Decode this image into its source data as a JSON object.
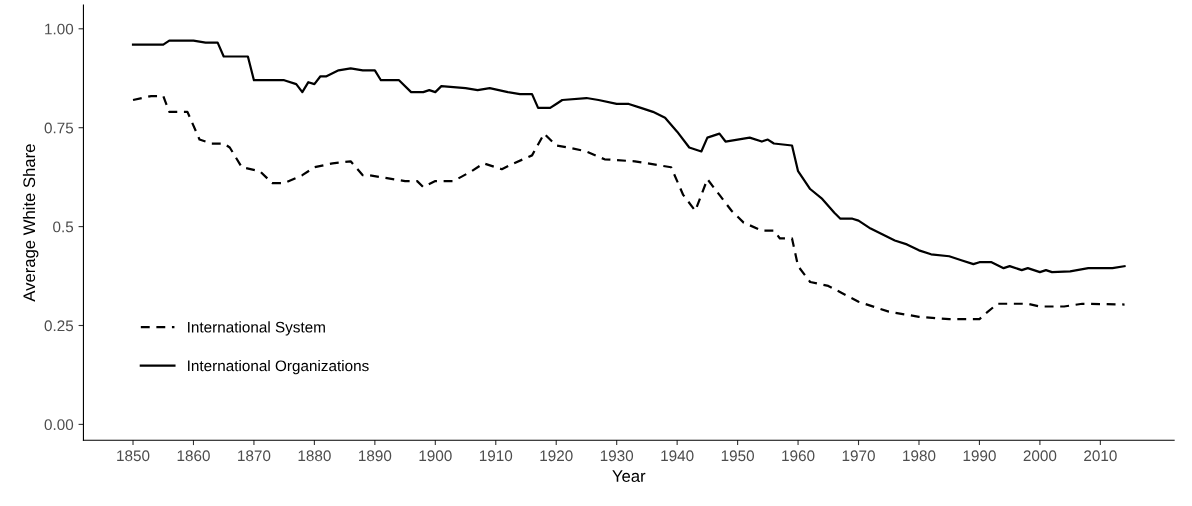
{
  "chart_data": {
    "type": "line",
    "xlabel": "Year",
    "ylabel": "Average White Share",
    "xlim": [
      1841.8,
      2022.2
    ],
    "xticks": [
      1850,
      1860,
      1870,
      1880,
      1890,
      1900,
      1910,
      1920,
      1930,
      1940,
      1950,
      1960,
      1970,
      1980,
      1990,
      2000,
      2010
    ],
    "ylim": [
      -0.04,
      1.06
    ],
    "yticks": [
      {
        "value": 0,
        "label": "0.00"
      },
      {
        "value": 0.25,
        "label": "0.25"
      },
      {
        "value": 0.5,
        "label": "0.5"
      },
      {
        "value": 0.75,
        "label": "0.75"
      },
      {
        "value": 1,
        "label": "1.00"
      }
    ],
    "grid": false,
    "legend": "bottom left",
    "series": [
      {
        "name": "International System",
        "color": "#000000",
        "line_style": "dashed",
        "x": [
          1850,
          1853,
          1855,
          1856,
          1859,
          1861,
          1863,
          1865,
          1866,
          1868,
          1871,
          1873,
          1875,
          1878,
          1880,
          1883,
          1886,
          1888,
          1889,
          1895,
          1897,
          1898,
          1900,
          1903,
          1906,
          1908,
          1911,
          1913,
          1916,
          1918,
          1920,
          1922,
          1925,
          1928,
          1933,
          1937,
          1939,
          1941,
          1943,
          1945,
          1947,
          1949,
          1951,
          1954,
          1956,
          1957,
          1959,
          1960,
          1962,
          1965,
          1970,
          1975,
          1980,
          1985,
          1990,
          1991,
          1993,
          1998,
          2000,
          2004,
          2007,
          2014
        ],
        "values": [
          0.82,
          0.83,
          0.83,
          0.79,
          0.79,
          0.72,
          0.71,
          0.71,
          0.7,
          0.65,
          0.64,
          0.61,
          0.61,
          0.63,
          0.65,
          0.66,
          0.665,
          0.63,
          0.63,
          0.615,
          0.615,
          0.6,
          0.615,
          0.615,
          0.64,
          0.66,
          0.645,
          0.66,
          0.68,
          0.735,
          0.705,
          0.7,
          0.69,
          0.67,
          0.665,
          0.655,
          0.65,
          0.58,
          0.54,
          0.62,
          0.58,
          0.54,
          0.51,
          0.49,
          0.49,
          0.47,
          0.47,
          0.4,
          0.36,
          0.35,
          0.31,
          0.285,
          0.272,
          0.266,
          0.266,
          0.28,
          0.305,
          0.305,
          0.298,
          0.298,
          0.305,
          0.303
        ]
      },
      {
        "name": "International Organizations",
        "color": "#000000",
        "line_style": "solid",
        "x": [
          1850,
          1855,
          1856,
          1860,
          1862,
          1864,
          1865,
          1869,
          1870,
          1875,
          1877,
          1878,
          1879,
          1880,
          1881,
          1882,
          1884,
          1886,
          1888,
          1890,
          1891,
          1894,
          1896,
          1898,
          1899,
          1900,
          1901,
          1905,
          1907,
          1909,
          1912,
          1914,
          1916,
          1917,
          1919,
          1920,
          1921,
          1925,
          1927,
          1930,
          1932,
          1934,
          1936,
          1938,
          1940,
          1942,
          1944,
          1945,
          1947,
          1948,
          1950,
          1952,
          1954,
          1955,
          1956,
          1959,
          1960,
          1962,
          1964,
          1966,
          1967,
          1969,
          1970,
          1972,
          1974,
          1976,
          1978,
          1980,
          1982,
          1985,
          1987,
          1989,
          1990,
          1992,
          1994,
          1995,
          1997,
          1998,
          2000,
          2001,
          2002,
          2005,
          2008,
          2012,
          2014
        ],
        "values": [
          0.96,
          0.96,
          0.97,
          0.97,
          0.965,
          0.965,
          0.93,
          0.93,
          0.87,
          0.87,
          0.86,
          0.84,
          0.865,
          0.86,
          0.88,
          0.88,
          0.895,
          0.9,
          0.895,
          0.895,
          0.87,
          0.87,
          0.84,
          0.84,
          0.845,
          0.84,
          0.855,
          0.85,
          0.845,
          0.85,
          0.84,
          0.835,
          0.835,
          0.8,
          0.8,
          0.81,
          0.82,
          0.825,
          0.82,
          0.81,
          0.81,
          0.8,
          0.79,
          0.775,
          0.74,
          0.7,
          0.69,
          0.725,
          0.735,
          0.715,
          0.72,
          0.725,
          0.715,
          0.72,
          0.71,
          0.705,
          0.64,
          0.595,
          0.57,
          0.535,
          0.52,
          0.52,
          0.515,
          0.495,
          0.48,
          0.465,
          0.455,
          0.44,
          0.43,
          0.425,
          0.415,
          0.405,
          0.41,
          0.41,
          0.395,
          0.4,
          0.39,
          0.395,
          0.385,
          0.39,
          0.385,
          0.387,
          0.395,
          0.395,
          0.4
        ]
      }
    ]
  }
}
